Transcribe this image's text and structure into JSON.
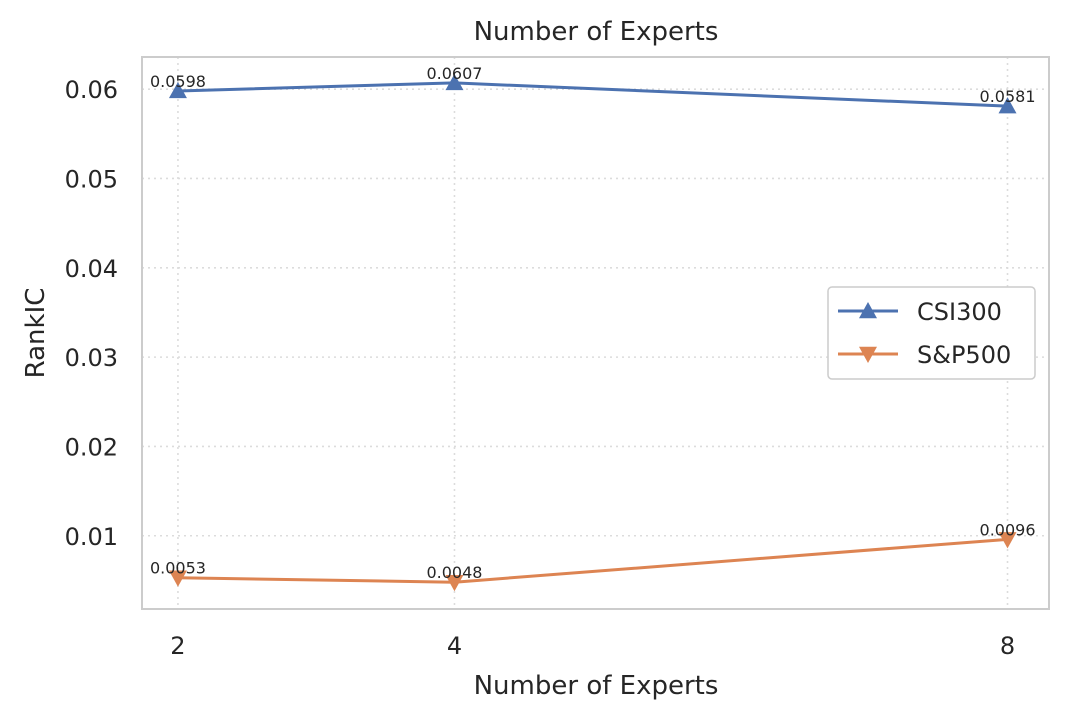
{
  "chart_data": {
    "type": "line",
    "title": "Number of Experts",
    "xlabel": "Number of Experts",
    "ylabel": "RankIC",
    "x": [
      2,
      4,
      8
    ],
    "x_tick_labels": [
      "2",
      "4",
      "8"
    ],
    "y_ticks": [
      0.01,
      0.02,
      0.03,
      0.04,
      0.05,
      0.06
    ],
    "y_tick_labels": [
      "0.01",
      "0.02",
      "0.03",
      "0.04",
      "0.05",
      "0.06"
    ],
    "xlim": [
      1.74,
      8.3
    ],
    "ylim": [
      0.0018,
      0.0636
    ],
    "grid": true,
    "legend_position": "center-right",
    "series": [
      {
        "name": "CSI300",
        "values": [
          0.0598,
          0.0607,
          0.0581
        ],
        "value_labels": [
          "0.0598",
          "0.0607",
          "0.0581"
        ],
        "color": "#4c72b0",
        "marker": "triangle-up"
      },
      {
        "name": "S&P500",
        "values": [
          0.0053,
          0.0048,
          0.0096
        ],
        "value_labels": [
          "0.0053",
          "0.0048",
          "0.0096"
        ],
        "color": "#dd8452",
        "marker": "triangle-down"
      }
    ]
  }
}
